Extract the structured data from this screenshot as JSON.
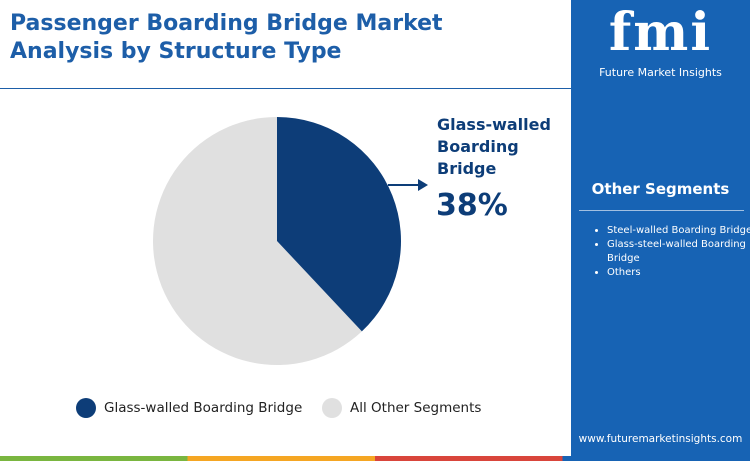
{
  "chart_data": {
    "type": "pie",
    "title": "Passenger Boarding Bridge Market Analysis by Structure Type",
    "categories": [
      "Glass-walled Boarding Bridge",
      "All Other Segments"
    ],
    "values": [
      38,
      62
    ],
    "value_labels": [
      "38%",
      null
    ],
    "colors": [
      "#0d3d78",
      "#e0e0e0"
    ]
  },
  "sidebar": {
    "logo": "fmi",
    "tagline": "Future Market Insights",
    "heading": "Other Segments",
    "items": [
      "Steel-walled Boarding Bridge",
      "Glass-steel-walled Boarding Bridge",
      "Others"
    ],
    "url": "www.futuremarketinsights.com"
  }
}
